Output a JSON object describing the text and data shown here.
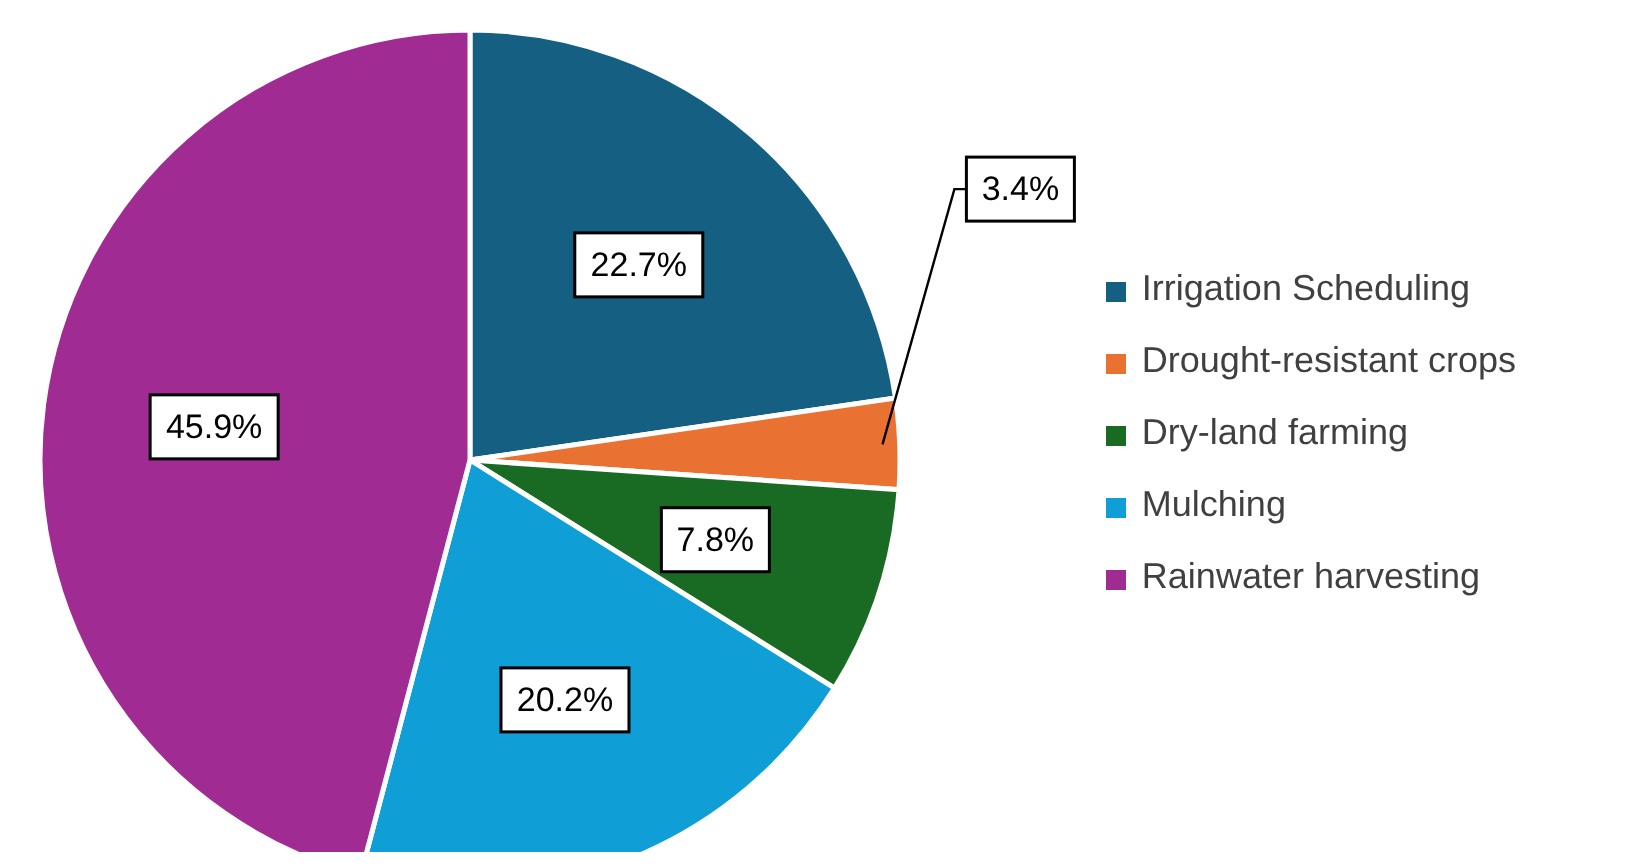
{
  "chart_data": {
    "type": "pie",
    "categories": [
      "Irrigation Scheduling",
      "Drought-resistant crops",
      "Dry-land farming",
      "Mulching",
      "Rainwater harvesting"
    ],
    "values": [
      22.7,
      3.4,
      7.8,
      20.2,
      45.9
    ],
    "colors": [
      "#156082",
      "#e97132",
      "#196b24",
      "#0f9ed5",
      "#a02b93"
    ],
    "value_labels": [
      "22.7%",
      "3.4%",
      "7.8%",
      "20.2%",
      "45.9%"
    ],
    "legend": "right"
  }
}
